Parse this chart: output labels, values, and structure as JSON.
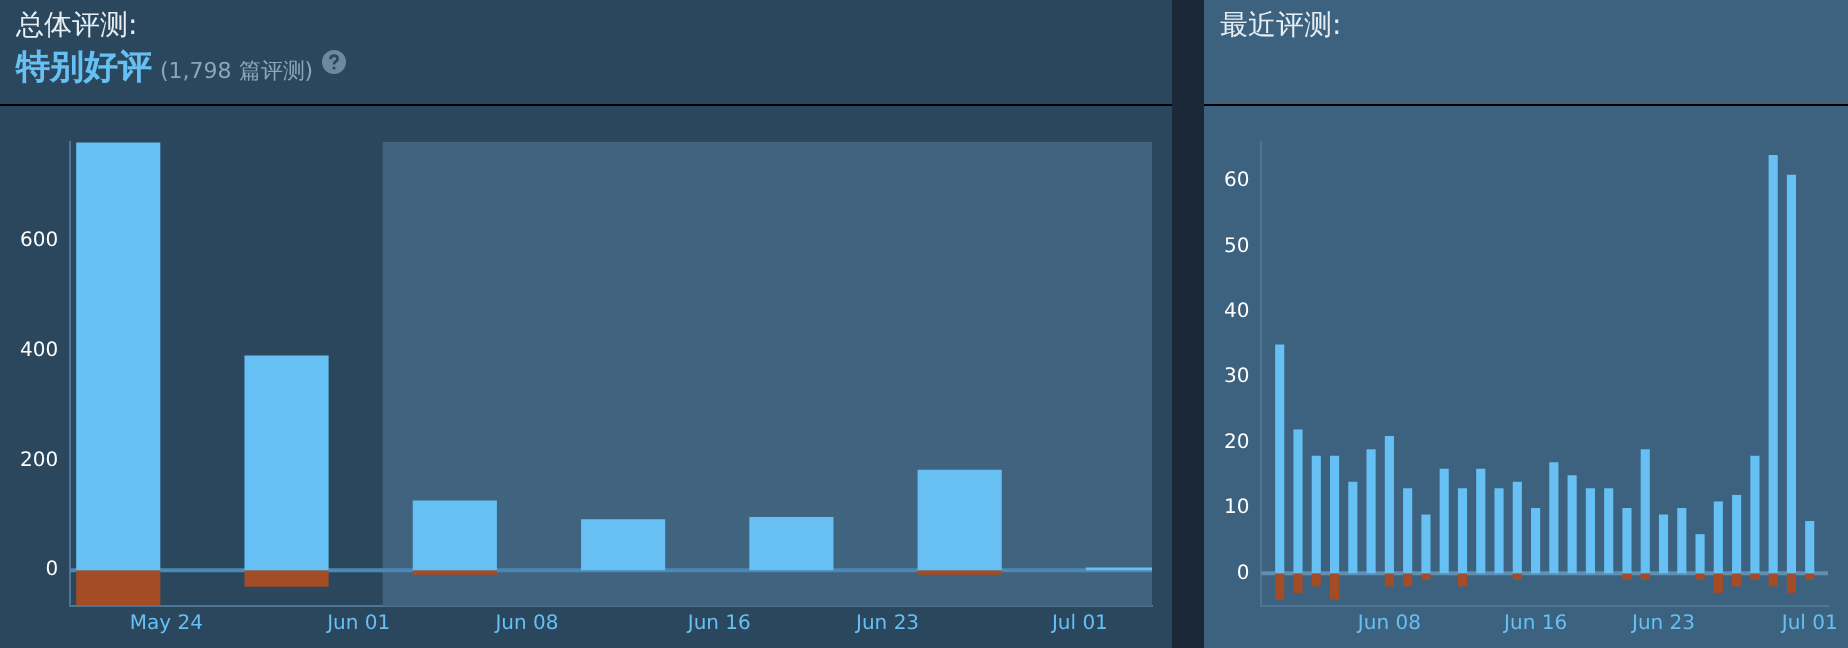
{
  "chart_data": [
    {
      "type": "bar",
      "title": "总体评测:",
      "subtitle": "特别好评",
      "annotations": [
        "(1,798 篇评测)"
      ],
      "stacked": true,
      "x": [
        "--05-22",
        "--05-29",
        "--06-05",
        "--06-12",
        "--06-19",
        "--06-26",
        "--07-03"
      ],
      "series": [
        {
          "color": "#66c0f4",
          "values": [
            779,
            391,
            127,
            93,
            97,
            183,
            5
          ]
        },
        {
          "color": "#a34c25",
          "values": [
            -63,
            -30,
            -8,
            null,
            null,
            -8,
            0
          ]
        }
      ],
      "xlim": [
        "--05-20",
        "--07-04"
      ],
      "xticks": [
        {
          "value": "--05-24",
          "label": "May 24"
        },
        {
          "value": "--06-01",
          "label": "Jun 01"
        },
        {
          "value": "--06-08",
          "label": "Jun 08"
        },
        {
          "value": "--06-16",
          "label": "Jun 16"
        },
        {
          "value": "--06-23",
          "label": "Jun 23"
        },
        {
          "value": "--07-01",
          "label": "Jul 01"
        }
      ],
      "ylim": [
        -65,
        780
      ],
      "yticks": [
        0,
        200,
        400,
        600
      ],
      "bands": [
        {
          "axis": "x",
          "from": "--06-02",
          "to": "--07-04",
          "color": "#40637f"
        }
      ],
      "ref_lines": [
        {
          "axis": "y",
          "value": 0,
          "color": "#4b88b5"
        }
      ],
      "grid": false,
      "legend": false
    },
    {
      "type": "bar",
      "title": "最近评测:",
      "stacked": true,
      "x": [
        "--06-02",
        "--06-03",
        "--06-04",
        "--06-05",
        "--06-06",
        "--06-07",
        "--06-08",
        "--06-09",
        "--06-10",
        "--06-11",
        "--06-12",
        "--06-13",
        "--06-14",
        "--06-15",
        "--06-16",
        "--06-17",
        "--06-18",
        "--06-19",
        "--06-20",
        "--06-21",
        "--06-22",
        "--06-23",
        "--06-24",
        "--06-25",
        "--06-26",
        "--06-27",
        "--06-28",
        "--06-29",
        "--06-30",
        "--07-01"
      ],
      "series": [
        {
          "color": "#66c0f4",
          "values": [
            35,
            22,
            18,
            18,
            14,
            19,
            21,
            13,
            9,
            16,
            13,
            16,
            13,
            14,
            10,
            17,
            15,
            13,
            13,
            10,
            19,
            9,
            10,
            6,
            11,
            12,
            18,
            64,
            61,
            8
          ]
        },
        {
          "color": "#a34c25",
          "values": [
            -4,
            -3,
            -2,
            -4,
            0,
            0,
            -2,
            -2,
            -1,
            0,
            -2,
            0,
            0,
            -1,
            0,
            0,
            0,
            0,
            0,
            -1,
            -1,
            0,
            0,
            -1,
            -3,
            -2,
            -1,
            -2,
            -3,
            -1
          ]
        }
      ],
      "xlim": [
        "--06-01",
        "--07-02"
      ],
      "xticks": [
        {
          "value": "--06-08",
          "label": "Jun 08"
        },
        {
          "value": "--06-16",
          "label": "Jun 16"
        },
        {
          "value": "--06-23",
          "label": "Jun 23"
        },
        {
          "value": "--07-01",
          "label": "Jul 01"
        }
      ],
      "ylim": [
        -5,
        66
      ],
      "yticks": [
        0,
        10,
        20,
        30,
        40,
        50,
        60
      ],
      "ref_lines": [
        {
          "axis": "y",
          "value": 0,
          "color": "#5f8fb3"
        }
      ],
      "grid": false,
      "legend": false
    }
  ]
}
